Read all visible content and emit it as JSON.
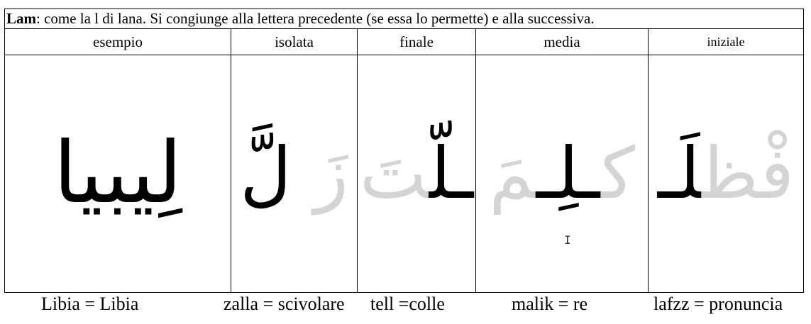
{
  "title": {
    "bold": "Lam",
    "rest": ": come la l di lana. Si congiunge alla lettera precedente (se essa lo permette) e alla successiva."
  },
  "headers": [
    "esempio",
    "isolata",
    "finale",
    "media",
    "iniziale"
  ],
  "arabic": {
    "esempio": {
      "black": "لِيبيا"
    },
    "isolata": {
      "grey": "زَ",
      "black": "لَّ"
    },
    "finale": {
      "grey": "تَ",
      "black": "ـلّ"
    },
    "media": {
      "grey_before": "مَ",
      "black": "ـلِـ",
      "grey_after": "ك"
    },
    "iniziale": {
      "black": "لَـ",
      "grey": "فْظ"
    }
  },
  "captions": [
    "Libia = Libia",
    "zalla = scivolare",
    "tell =colle",
    "malik = re",
    "lafzz = pronuncia"
  ]
}
